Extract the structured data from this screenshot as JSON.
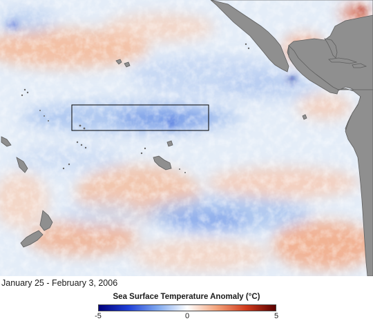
{
  "caption": {
    "date_range": "January 25 - February 3, 2006"
  },
  "legend": {
    "title": "Sea Surface Temperature Anomaly (°C)",
    "min": -5,
    "max": 5,
    "ticks": [
      {
        "value": -5,
        "label": "-5"
      },
      {
        "value": 0,
        "label": "0"
      },
      {
        "value": 5,
        "label": "5"
      }
    ],
    "colors": [
      "#00007a",
      "#1f3fd6",
      "#7fa8ee",
      "#ffffff",
      "#f3a37b",
      "#d03a1c",
      "#5a0000"
    ]
  },
  "map": {
    "land_color": "#8f8f8f",
    "ocean_base": "#dce8f7",
    "highlight_box_color": "#000000"
  }
}
